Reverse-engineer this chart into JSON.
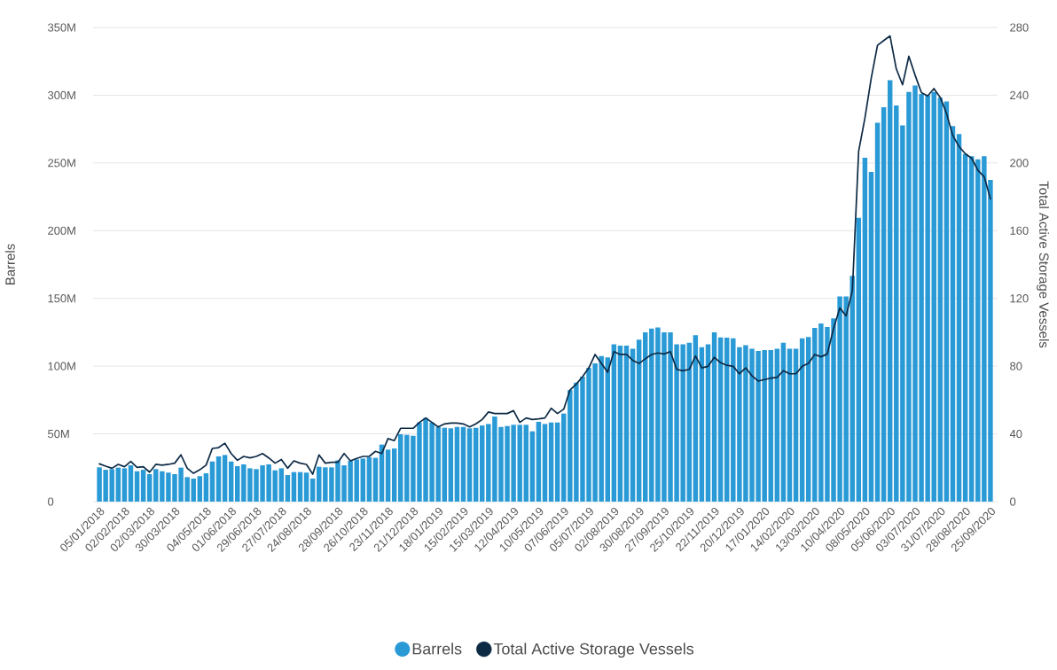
{
  "chart_data": {
    "type": "bar",
    "ylabel": "Barrels",
    "y2label": "Total Active Storage Vessels",
    "x": [
      "2018-01-05",
      "2018-01-12",
      "2018-01-19",
      "2018-01-26",
      "2018-02-02",
      "2018-02-09",
      "2018-02-16",
      "2018-02-23",
      "2018-03-02",
      "2018-03-09",
      "2018-03-16",
      "2018-03-23",
      "2018-03-30",
      "2018-04-06",
      "2018-04-13",
      "2018-04-20",
      "2018-04-27",
      "2018-05-04",
      "2018-05-11",
      "2018-05-18",
      "2018-05-25",
      "2018-06-01",
      "2018-06-08",
      "2018-06-15",
      "2018-06-22",
      "2018-06-29",
      "2018-07-06",
      "2018-07-13",
      "2018-07-20",
      "2018-07-27",
      "2018-08-03",
      "2018-08-10",
      "2018-08-17",
      "2018-08-24",
      "2018-08-31",
      "2018-09-07",
      "2018-09-14",
      "2018-09-21",
      "2018-09-28",
      "2018-10-05",
      "2018-10-12",
      "2018-10-19",
      "2018-10-26",
      "2018-11-02",
      "2018-11-09",
      "2018-11-16",
      "2018-11-23",
      "2018-11-30",
      "2018-12-07",
      "2018-12-14",
      "2018-12-21",
      "2018-12-28",
      "2019-01-04",
      "2019-01-11",
      "2019-01-18",
      "2019-01-25",
      "2019-02-01",
      "2019-02-08",
      "2019-02-15",
      "2019-02-22",
      "2019-03-01",
      "2019-03-08",
      "2019-03-15",
      "2019-03-22",
      "2019-03-29",
      "2019-04-05",
      "2019-04-12",
      "2019-04-19",
      "2019-04-26",
      "2019-05-03",
      "2019-05-10",
      "2019-05-17",
      "2019-05-24",
      "2019-05-31",
      "2019-06-07",
      "2019-06-14",
      "2019-06-21",
      "2019-06-28",
      "2019-07-05",
      "2019-07-12",
      "2019-07-19",
      "2019-07-26",
      "2019-08-02",
      "2019-08-09",
      "2019-08-16",
      "2019-08-23",
      "2019-08-30",
      "2019-09-06",
      "2019-09-13",
      "2019-09-20",
      "2019-09-27",
      "2019-10-04",
      "2019-10-11",
      "2019-10-18",
      "2019-10-25",
      "2019-11-01",
      "2019-11-08",
      "2019-11-15",
      "2019-11-22",
      "2019-11-29",
      "2019-12-06",
      "2019-12-13",
      "2019-12-20",
      "2019-12-27",
      "2020-01-03",
      "2020-01-10",
      "2020-01-17",
      "2020-01-24",
      "2020-01-31",
      "2020-02-07",
      "2020-02-14",
      "2020-02-21",
      "2020-02-28",
      "2020-03-06",
      "2020-03-13",
      "2020-03-20",
      "2020-03-27",
      "2020-04-03",
      "2020-04-10",
      "2020-04-17",
      "2020-04-24",
      "2020-05-01",
      "2020-05-08",
      "2020-05-15",
      "2020-05-22",
      "2020-05-29",
      "2020-06-05",
      "2020-06-12",
      "2020-06-19",
      "2020-06-26",
      "2020-07-03",
      "2020-07-10",
      "2020-07-17",
      "2020-07-24",
      "2020-07-31",
      "2020-08-07",
      "2020-08-14",
      "2020-08-21",
      "2020-08-28",
      "2020-09-04",
      "2020-09-11",
      "2020-09-18",
      "2020-09-25"
    ],
    "series": [
      {
        "name": "Barrels",
        "color": "#2a9ad6",
        "values": [
          25.3,
          23.5,
          24.0,
          25.1,
          24.6,
          26.8,
          22.4,
          23.5,
          20.3,
          24.0,
          22.4,
          21.4,
          20.3,
          25.1,
          18.1,
          17.0,
          18.8,
          20.9,
          29.6,
          33.4,
          34.4,
          29.6,
          26.2,
          27.5,
          24.6,
          24.0,
          26.8,
          27.5,
          23.1,
          24.6,
          19.6,
          21.8,
          21.8,
          21.4,
          17.0,
          25.7,
          25.3,
          25.3,
          30.5,
          26.8,
          30.1,
          31.2,
          31.8,
          32.7,
          32.3,
          42.1,
          38.4,
          39.2,
          49.7,
          49.3,
          48.6,
          58.4,
          61.7,
          58.4,
          55.1,
          54.5,
          54.1,
          55.1,
          55.1,
          54.1,
          54.5,
          56.2,
          57.3,
          62.8,
          55.1,
          55.8,
          56.7,
          56.7,
          56.7,
          51.9,
          58.9,
          57.3,
          58.4,
          58.4,
          65.0,
          82.4,
          87.9,
          92.2,
          98.8,
          102.0,
          107.5,
          106.4,
          116.2,
          115.1,
          115.1,
          112.9,
          119.5,
          124.9,
          127.8,
          128.6,
          124.9,
          124.9,
          116.2,
          116.2,
          117.3,
          122.8,
          114.0,
          116.2,
          124.9,
          121.2,
          121.0,
          120.6,
          114.0,
          115.5,
          112.9,
          111.2,
          111.8,
          111.8,
          112.9,
          117.3,
          112.9,
          112.9,
          120.6,
          121.6,
          128.2,
          131.5,
          128.9,
          135.2,
          151.5,
          151.5,
          166.7,
          209.5,
          253.8,
          243.4,
          279.6,
          291.2,
          311.1,
          292.4,
          277.7,
          302.4,
          307.1,
          301.0,
          300.0,
          302.4,
          298.2,
          295.4,
          277.2,
          271.4,
          256.6,
          255.0,
          252.7,
          255.0,
          237.5
        ]
      },
      {
        "name": "Total Active Storage Vessels",
        "type": "line",
        "axis": "y2",
        "color": "#0d2a45",
        "values": [
          22.3,
          20.9,
          19.7,
          22.0,
          20.6,
          23.7,
          20.2,
          20.6,
          17.4,
          22.0,
          21.5,
          22.0,
          22.7,
          27.6,
          19.7,
          16.7,
          18.8,
          21.5,
          31.4,
          31.9,
          34.5,
          28.4,
          24.4,
          26.7,
          25.8,
          26.7,
          28.4,
          25.8,
          22.7,
          24.9,
          19.7,
          24.1,
          22.7,
          22.0,
          16.2,
          27.6,
          22.7,
          23.2,
          23.2,
          28.4,
          24.1,
          25.5,
          26.7,
          26.7,
          29.7,
          28.4,
          37.2,
          36.0,
          43.3,
          43.3,
          43.3,
          46.8,
          49.4,
          46.8,
          44.1,
          45.9,
          46.4,
          46.4,
          45.9,
          44.1,
          45.9,
          48.5,
          52.9,
          52.0,
          52.0,
          52.0,
          53.7,
          46.8,
          49.4,
          48.5,
          48.9,
          49.4,
          55.1,
          52.0,
          54.6,
          65.9,
          69.4,
          73.8,
          79.0,
          86.9,
          81.6,
          76.4,
          88.6,
          86.9,
          86.9,
          83.4,
          81.6,
          84.3,
          86.9,
          87.8,
          87.2,
          88.6,
          78.1,
          77.3,
          78.1,
          86.0,
          79.0,
          79.9,
          85.2,
          82.0,
          80.5,
          79.9,
          75.5,
          79.0,
          74.3,
          71.2,
          72.1,
          72.9,
          73.3,
          77.3,
          75.5,
          75.5,
          79.9,
          81.6,
          86.9,
          85.5,
          87.2,
          102.2,
          114.4,
          109.7,
          124.6,
          206.9,
          226.5,
          250,
          269.5,
          272.3,
          275,
          255.5,
          246.2,
          263.0,
          251.8,
          241.5,
          239.6,
          243.9,
          238.7,
          229.3,
          216.2,
          209.7,
          205.4,
          202.8,
          195.7,
          191.9,
          178.8
        ]
      }
    ],
    "xlim": [
      "2017-12-29",
      "2020-10-03"
    ],
    "xticks": [
      {
        "value": "2018-01-05",
        "label": "05/01/2018"
      },
      {
        "value": "2018-02-02",
        "label": "02/02/2018"
      },
      {
        "value": "2018-03-02",
        "label": "02/03/2018"
      },
      {
        "value": "2018-03-30",
        "label": "30/03/2018"
      },
      {
        "value": "2018-05-04",
        "label": "04/05/2018"
      },
      {
        "value": "2018-06-01",
        "label": "01/06/2018"
      },
      {
        "value": "2018-06-29",
        "label": "29/06/2018"
      },
      {
        "value": "2018-07-27",
        "label": "27/07/2018"
      },
      {
        "value": "2018-08-24",
        "label": "24/08/2018"
      },
      {
        "value": "2018-09-28",
        "label": "28/09/2018"
      },
      {
        "value": "2018-10-26",
        "label": "26/10/2018"
      },
      {
        "value": "2018-11-23",
        "label": "23/11/2018"
      },
      {
        "value": "2018-12-21",
        "label": "21/12/2018"
      },
      {
        "value": "2019-01-18",
        "label": "18/01/2019"
      },
      {
        "value": "2019-02-15",
        "label": "15/02/2019"
      },
      {
        "value": "2019-03-15",
        "label": "15/03/2019"
      },
      {
        "value": "2019-04-12",
        "label": "12/04/2019"
      },
      {
        "value": "2019-05-10",
        "label": "10/05/2019"
      },
      {
        "value": "2019-06-07",
        "label": "07/06/2019"
      },
      {
        "value": "2019-07-05",
        "label": "05/07/2019"
      },
      {
        "value": "2019-08-02",
        "label": "02/08/2019"
      },
      {
        "value": "2019-08-30",
        "label": "30/08/2019"
      },
      {
        "value": "2019-09-27",
        "label": "27/09/2019"
      },
      {
        "value": "2019-10-25",
        "label": "25/10/2019"
      },
      {
        "value": "2019-11-22",
        "label": "22/11/2019"
      },
      {
        "value": "2019-12-20",
        "label": "20/12/2019"
      },
      {
        "value": "2020-01-17",
        "label": "17/01/2020"
      },
      {
        "value": "2020-02-14",
        "label": "14/02/2020"
      },
      {
        "value": "2020-03-13",
        "label": "13/03/2020"
      },
      {
        "value": "2020-04-10",
        "label": "10/04/2020"
      },
      {
        "value": "2020-05-08",
        "label": "08/05/2020"
      },
      {
        "value": "2020-06-05",
        "label": "05/06/2020"
      },
      {
        "value": "2020-07-03",
        "label": "03/07/2020"
      },
      {
        "value": "2020-07-31",
        "label": "31/07/2020"
      },
      {
        "value": "2020-08-28",
        "label": "28/08/2020"
      },
      {
        "value": "2020-09-25",
        "label": "25/09/2020"
      }
    ],
    "ylim": [
      0,
      350
    ],
    "yticks": [
      0,
      {
        "value": 50,
        "label": "50M"
      },
      {
        "value": 100,
        "label": "100M"
      },
      {
        "value": 150,
        "label": "150M"
      },
      {
        "value": 200,
        "label": "200M"
      },
      {
        "value": 250,
        "label": "250M"
      },
      {
        "value": 300,
        "label": "300M"
      },
      {
        "value": 350,
        "label": "350M"
      }
    ],
    "y2lim": [
      0,
      280
    ],
    "y2ticks": [
      0,
      40,
      80,
      120,
      160,
      200,
      240,
      280
    ],
    "grid": "y",
    "legend": "bottom"
  }
}
